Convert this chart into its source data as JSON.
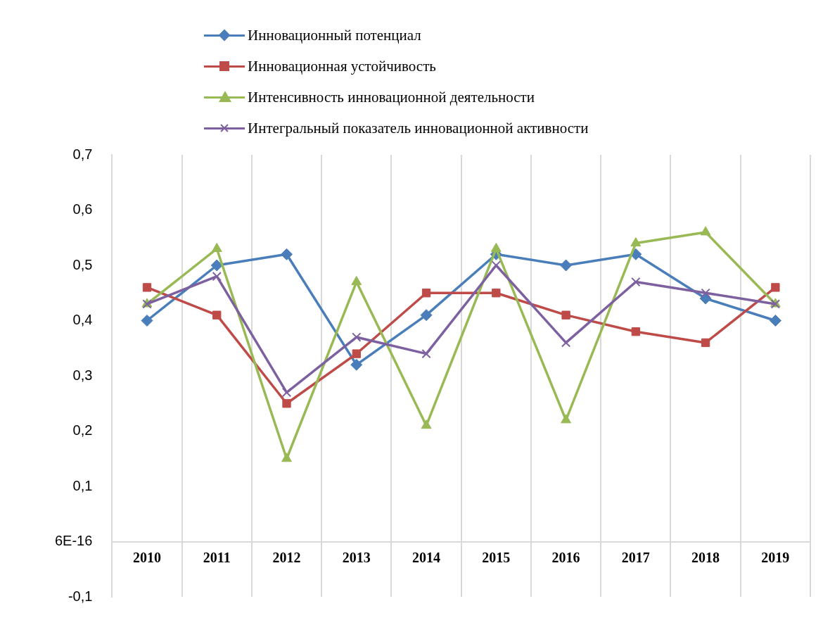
{
  "chart_data": {
    "type": "line",
    "categories": [
      "2010",
      "2011",
      "2012",
      "2013",
      "2014",
      "2015",
      "2016",
      "2017",
      "2018",
      "2019"
    ],
    "series": [
      {
        "name": "Инновационный потенциал",
        "color": "#4a7ebb",
        "marker": "diamond",
        "values": [
          0.4,
          0.5,
          0.52,
          0.32,
          0.41,
          0.52,
          0.5,
          0.52,
          0.44,
          0.4
        ]
      },
      {
        "name": "Инновационная устойчивость",
        "color": "#be4b48",
        "marker": "square",
        "values": [
          0.46,
          0.41,
          0.25,
          0.34,
          0.45,
          0.45,
          0.41,
          0.38,
          0.36,
          0.46
        ]
      },
      {
        "name": "Интенсивность инновационной деятельности",
        "color": "#98b954",
        "marker": "triangle",
        "values": [
          0.43,
          0.53,
          0.15,
          0.47,
          0.21,
          0.53,
          0.22,
          0.54,
          0.56,
          0.43
        ]
      },
      {
        "name": "Интегральный показатель инновационной активности",
        "color": "#7d60a0",
        "marker": "cross",
        "values": [
          0.43,
          0.48,
          0.27,
          0.37,
          0.34,
          0.5,
          0.36,
          0.47,
          0.45,
          0.43
        ]
      }
    ],
    "ylim": [
      -0.1,
      0.7
    ],
    "yticks": [
      {
        "value": -0.1,
        "label": "-0,1"
      },
      {
        "value": 0,
        "label": "6E-16"
      },
      {
        "value": 0.1,
        "label": "0,1"
      },
      {
        "value": 0.2,
        "label": "0,2"
      },
      {
        "value": 0.3,
        "label": "0,3"
      },
      {
        "value": 0.4,
        "label": "0,4"
      },
      {
        "value": 0.5,
        "label": "0,5"
      },
      {
        "value": 0.6,
        "label": "0,6"
      },
      {
        "value": 0.7,
        "label": "0,7"
      }
    ],
    "grid": "x",
    "legend": "top",
    "line_style": "solid"
  }
}
